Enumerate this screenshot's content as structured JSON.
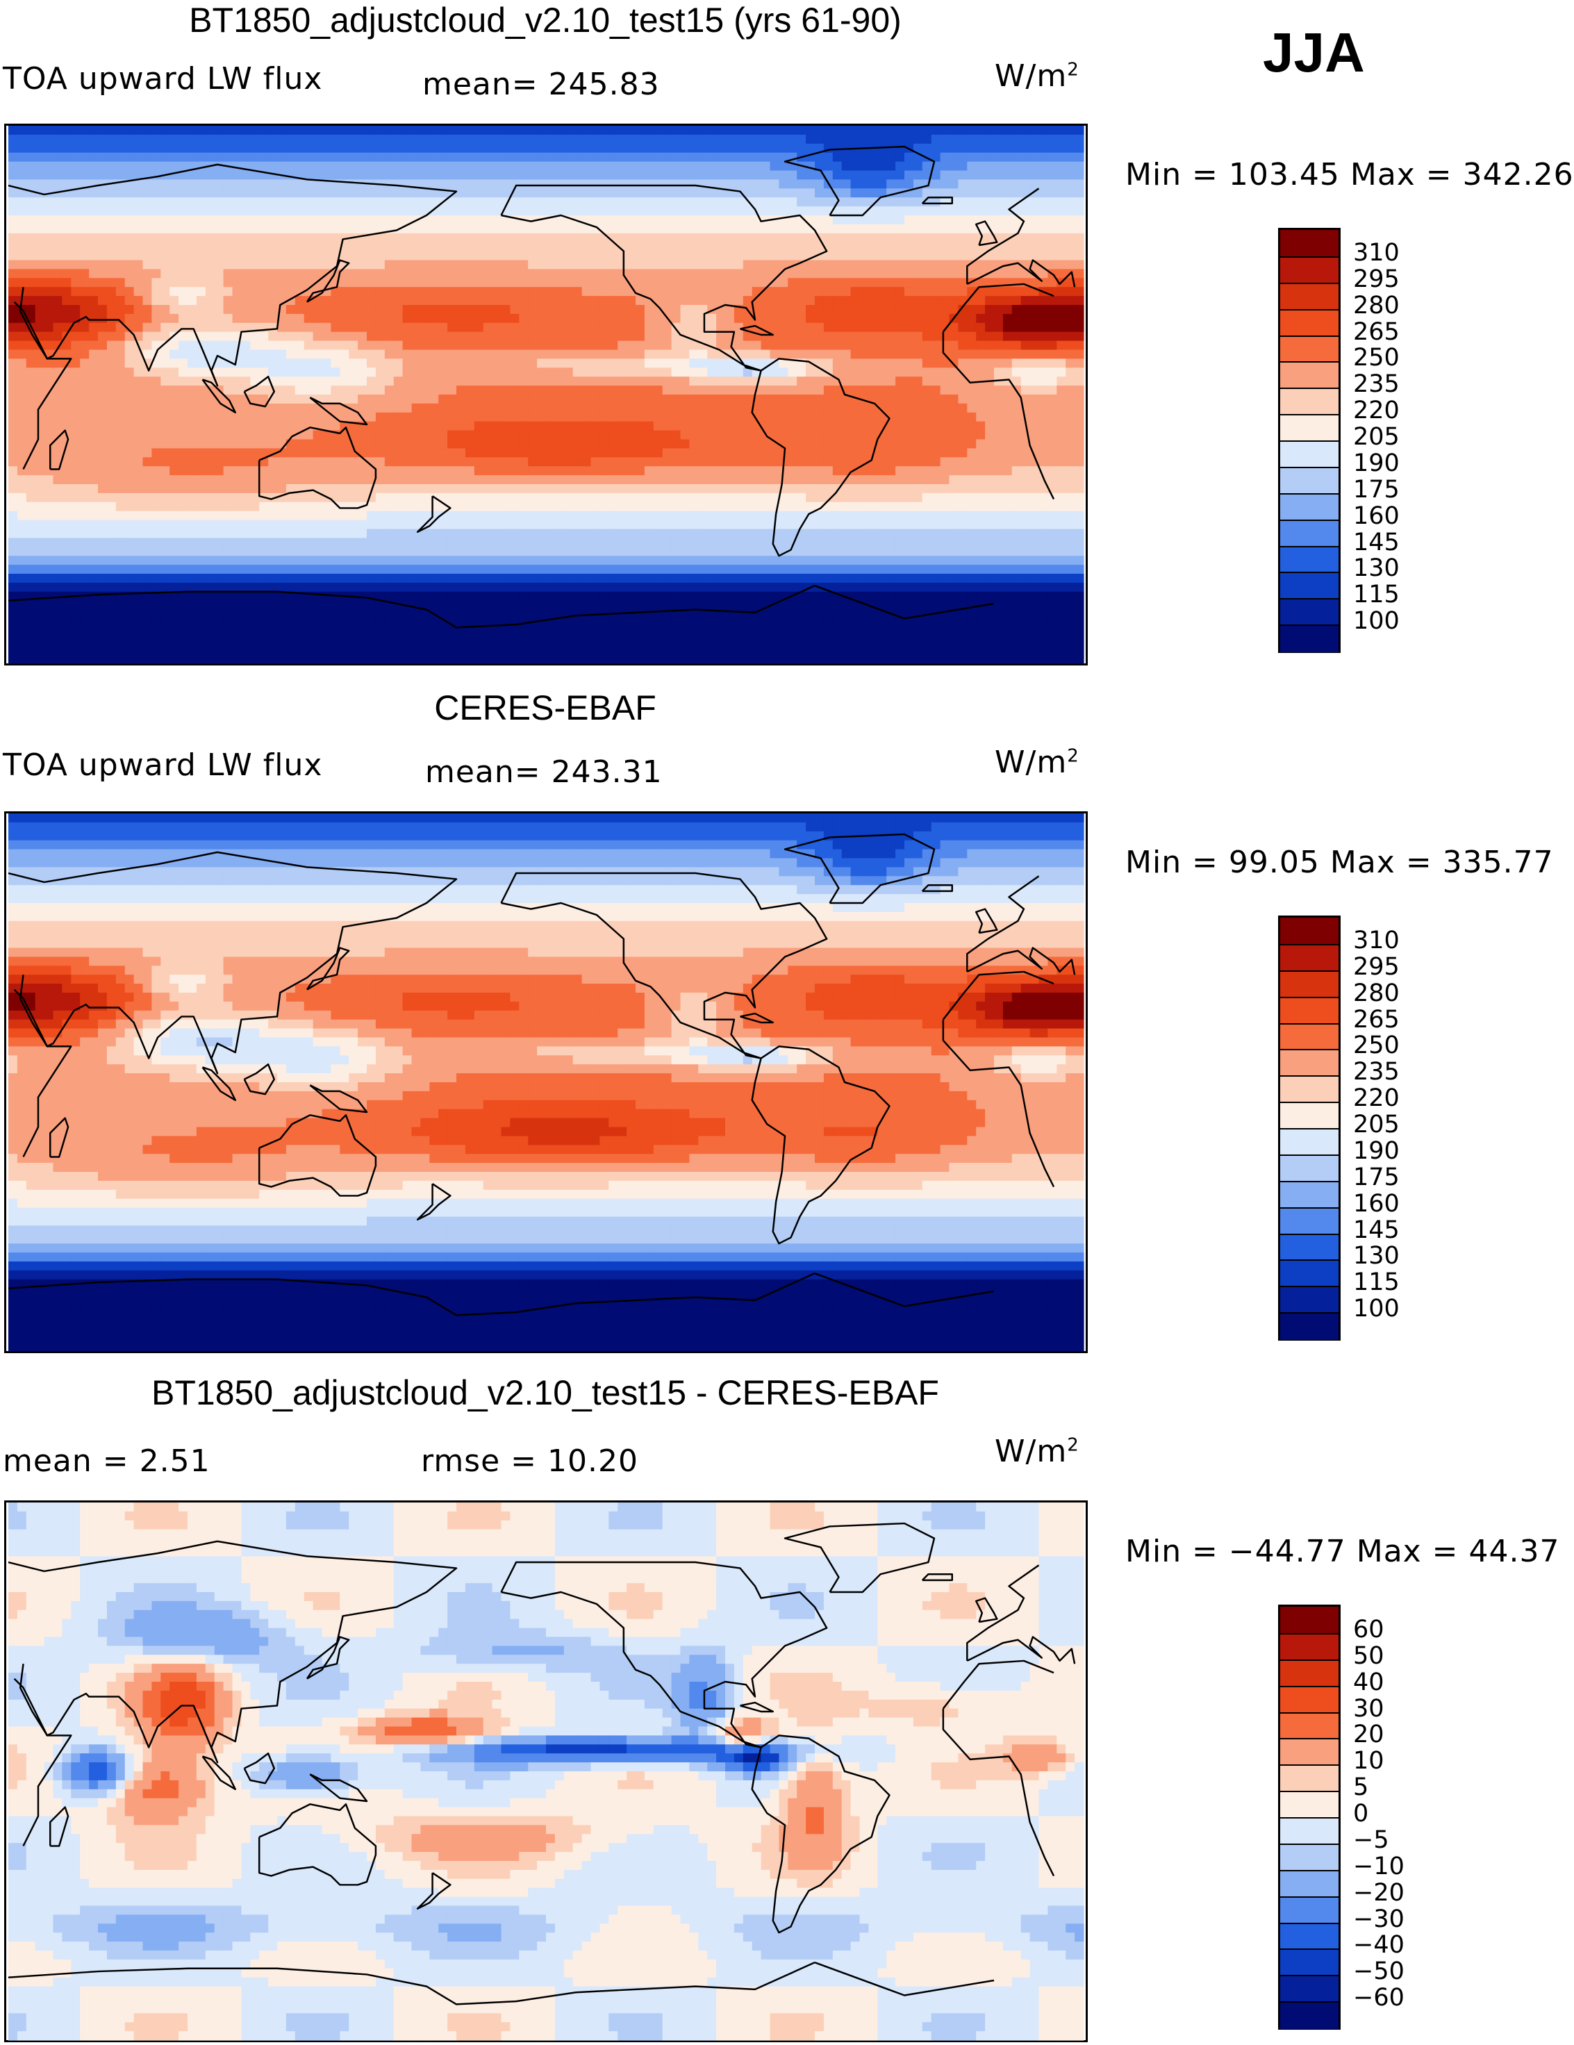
{
  "season": "JJA",
  "panels": [
    {
      "title": "BT1850_adjustcloud_v2.10_test15 (yrs 61-90)",
      "left_label": "TOA upward LW flux",
      "center_label": "mean=  245.83",
      "units": "W/m",
      "units_sup": "2",
      "minmax": "Min =  103.45  Max =  342.26",
      "kind": "abs"
    },
    {
      "title": "CERES-EBAF",
      "left_label": "TOA upward LW flux",
      "center_label": "mean=  243.31",
      "units": "W/m",
      "units_sup": "2",
      "minmax": "Min =   99.05  Max =  335.77",
      "kind": "abs"
    },
    {
      "title": "BT1850_adjustcloud_v2.10_test15 - CERES-EBAF",
      "left_label": "mean =     2.51",
      "center_label": "rmse =    10.20",
      "units": "W/m",
      "units_sup": "2",
      "minmax": "Min = −44.77  Max =   44.37",
      "kind": "diff"
    }
  ],
  "colorbar_abs": {
    "labels": [
      "310",
      "295",
      "280",
      "265",
      "250",
      "235",
      "220",
      "205",
      "190",
      "175",
      "160",
      "145",
      "130",
      "115",
      "100"
    ],
    "colors": [
      "#7f0000",
      "#b8180a",
      "#d8330f",
      "#ee4d1e",
      "#f56b3c",
      "#f9a07f",
      "#fcd0b8",
      "#fdeee4",
      "#d9e8fb",
      "#b3cdf6",
      "#86aef2",
      "#5388ec",
      "#2260e0",
      "#0d3fc4",
      "#04209a",
      "#000b73"
    ]
  },
  "colorbar_diff": {
    "labels": [
      "60",
      "50",
      "40",
      "30",
      "20",
      "10",
      "5",
      "0",
      "−5",
      "−10",
      "−20",
      "−30",
      "−40",
      "−50",
      "−60"
    ],
    "colors": [
      "#7f0000",
      "#b8180a",
      "#d8330f",
      "#ee4d1e",
      "#f56b3c",
      "#f9a07f",
      "#fcd0b8",
      "#fdeee4",
      "#d9e8fb",
      "#b3cdf6",
      "#86aef2",
      "#5388ec",
      "#2260e0",
      "#0d3fc4",
      "#04209a",
      "#000b73"
    ]
  },
  "chart_data": [
    {
      "type": "heatmap",
      "title": "BT1850_adjustcloud_v2.10_test15 (yrs 61-90)",
      "variable": "TOA upward LW flux",
      "units": "W/m2",
      "season": "JJA",
      "mean": 245.83,
      "min": 103.45,
      "max": 342.26,
      "contour_levels": [
        100,
        115,
        130,
        145,
        160,
        175,
        190,
        205,
        220,
        235,
        250,
        265,
        280,
        295,
        310
      ]
    },
    {
      "type": "heatmap",
      "title": "CERES-EBAF",
      "variable": "TOA upward LW flux",
      "units": "W/m2",
      "season": "JJA",
      "mean": 243.31,
      "min": 99.05,
      "max": 335.77,
      "contour_levels": [
        100,
        115,
        130,
        145,
        160,
        175,
        190,
        205,
        220,
        235,
        250,
        265,
        280,
        295,
        310
      ]
    },
    {
      "type": "heatmap",
      "title": "BT1850_adjustcloud_v2.10_test15 - CERES-EBAF",
      "units": "W/m2",
      "season": "JJA",
      "mean": 2.51,
      "rmse": 10.2,
      "min": -44.77,
      "max": 44.37,
      "contour_levels": [
        -60,
        -50,
        -40,
        -30,
        -20,
        -10,
        -5,
        0,
        5,
        10,
        20,
        30,
        40,
        50,
        60
      ]
    }
  ]
}
